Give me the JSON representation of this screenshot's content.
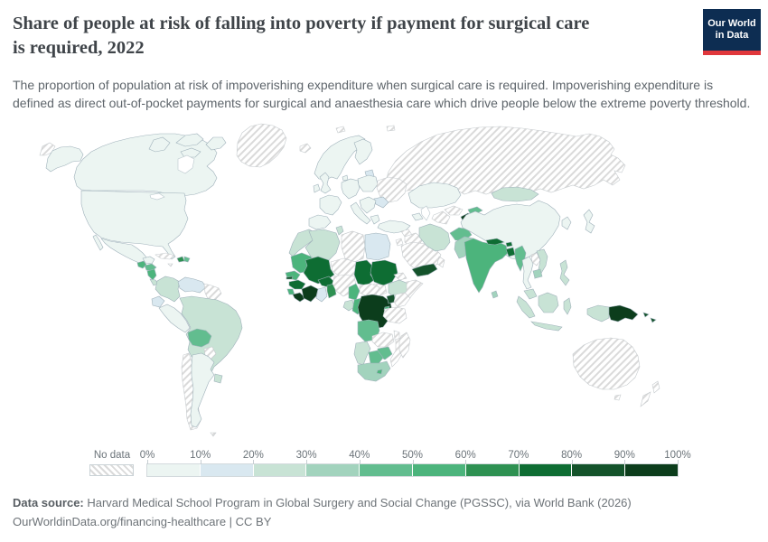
{
  "header": {
    "title": "Share of people at risk of falling into poverty if payment for surgical care\nis required, 2022",
    "subtitle": "The proportion of population at risk of impoverishing expenditure when surgical care is required. Impoverishing expenditure is defined as direct out-of-pocket payments for surgical and anaesthesia care which drive people below the extreme poverty threshold.",
    "logo": {
      "line1": "Our World",
      "line2": "in Data",
      "bg": "#0d2d52",
      "accent": "#e0373c"
    }
  },
  "legend": {
    "no_data_label": "No data",
    "tick_labels": [
      "0%",
      "10%",
      "20%",
      "30%",
      "40%",
      "50%",
      "60%",
      "70%",
      "80%",
      "90%",
      "100%"
    ],
    "colors": [
      "#ecf5f2",
      "#d9e8f0",
      "#c8e3d5",
      "#a2d3bd",
      "#62bd8f",
      "#4cb47c",
      "#2e9152",
      "#0e6d33",
      "#14532b",
      "#0c3d1c"
    ],
    "hatch_line_color": "#dadada"
  },
  "footer": {
    "source_label": "Data source:",
    "source_text": " Harvard Medical School Program in Global Surgery and Social Change (PGSSC), via World Bank (2026)",
    "license_text": "OurWorldinData.org/financing-healthcare | CC BY"
  },
  "chart_data": {
    "type": "heatmap",
    "subtype": "world-choropleth",
    "title": "Share of people at risk of falling into poverty if payment for surgical care is required",
    "year": "2022",
    "unit": "% of population",
    "bins": [
      "0-10%",
      "10-20%",
      "20-30%",
      "30-40%",
      "40-50%",
      "50-60%",
      "60-70%",
      "70-80%",
      "80-90%",
      "90-100%",
      "no data"
    ],
    "legend_position": "bottom",
    "countries": {
      "Canada": "0-10%",
      "United States": "0-10%",
      "Mexico": "0-10%",
      "Greenland": "no data",
      "Guatemala": "50-60%",
      "Honduras": "40-50%",
      "Nicaragua": "50-60%",
      "Costa Rica": "20-30%",
      "Panama": "20-30%",
      "Cuba": "no data",
      "Jamaica": "no data",
      "Haiti": "60-70%",
      "Dominican Republic": "40-50%",
      "Colombia": "20-30%",
      "Venezuela": "10-20%",
      "Guyana": "no data",
      "Ecuador": "10-20%",
      "Peru": "0-10%",
      "Brazil": "20-30%",
      "Bolivia": "40-50%",
      "Paraguay": "no data",
      "Chile": "no data",
      "Argentina": "0-10%",
      "Uruguay": "20-30%",
      "Falkland Islands": "no data",
      "Iceland": "no data",
      "United Kingdom": "0-10%",
      "Ireland": "0-10%",
      "Norway": "0-10%",
      "Sweden": "0-10%",
      "Finland": "0-10%",
      "Denmark": "0-10%",
      "Estonia": "10-20%",
      "Germany": "0-10%",
      "Poland": "0-10%",
      "France": "0-10%",
      "Spain": "0-10%",
      "Italy": "0-10%",
      "Serbia": "0-10%",
      "Greece": "0-10%",
      "Romania": "10-20%",
      "Ukraine": "no data",
      "Turkey": "0-10%",
      "Georgia": "0-10%",
      "Morocco": "20-30%",
      "Algeria": "20-30%",
      "Tunisia": "20-30%",
      "Libya": "no data",
      "Egypt": "10-20%",
      "Mauritania": "50-60%",
      "Senegal": "50-60%",
      "Gambia": "80-90%",
      "Guinea": "70-80%",
      "Sierra Leone": "50-60%",
      "Liberia": "90-100%",
      "Mali": "70-80%",
      "Burkina Faso": "70-80%",
      "Cote d'Ivoire": "90-100%",
      "Ghana": "10-20%",
      "Togo": "60-70%",
      "Niger": "no data",
      "Nigeria": "no data",
      "Chad": "70-80%",
      "Sudan": "70-80%",
      "South Sudan": "no data",
      "Eritrea": "no data",
      "Ethiopia": "20-30%",
      "Somalia": "no data",
      "Central African Republic": "no data",
      "Cameroon": "50-60%",
      "Gabon": "20-30%",
      "Congo": "50-60%",
      "Democratic Republic of Congo": "90-100%",
      "Uganda": "80-90%",
      "Kenya": "no data",
      "Rwanda": "50-60%",
      "Tanzania": "no data",
      "Angola": "40-50%",
      "Zambia": "no data",
      "Malawi": "no data",
      "Mozambique": "no data",
      "Zimbabwe": "40-50%",
      "Botswana": "40-50%",
      "Namibia": "20-30%",
      "South Africa": "30-40%",
      "Lesotho": "50-60%",
      "Madagascar": "no data",
      "Syria": "no data",
      "Jordan": "no data",
      "Iraq": "no data",
      "Saudi Arabia": "no data",
      "Yemen": "80-90%",
      "Oman": "no data",
      "Iran": "20-30%",
      "Russia": "no data",
      "Kazakhstan": "0-10%",
      "Uzbekistan": "no data",
      "Turkmenistan": "no data",
      "Kyrgyzstan": "40-50%",
      "Tajikistan": "90-100%",
      "Mongolia": "20-30%",
      "China": "0-10%",
      "South Korea": "0-10%",
      "Japan": "0-10%",
      "Afghanistan": "40-50%",
      "Pakistan": "30-40%",
      "India": "50-60%",
      "Nepal": "70-80%",
      "Bhutan": "70-80%",
      "Bangladesh": "70-80%",
      "Myanmar": "40-50%",
      "Sri Lanka": "30-40%",
      "Thailand": "0-10%",
      "Laos": "no data",
      "Vietnam": "20-30%",
      "Cambodia": "30-40%",
      "Malaysia": "20-30%",
      "Indonesia": "20-30%",
      "Philippines": "20-30%",
      "Papua New Guinea": "90-100%",
      "Solomon Islands": "80-90%",
      "Australia": "no data",
      "New Zealand": "no data"
    }
  }
}
